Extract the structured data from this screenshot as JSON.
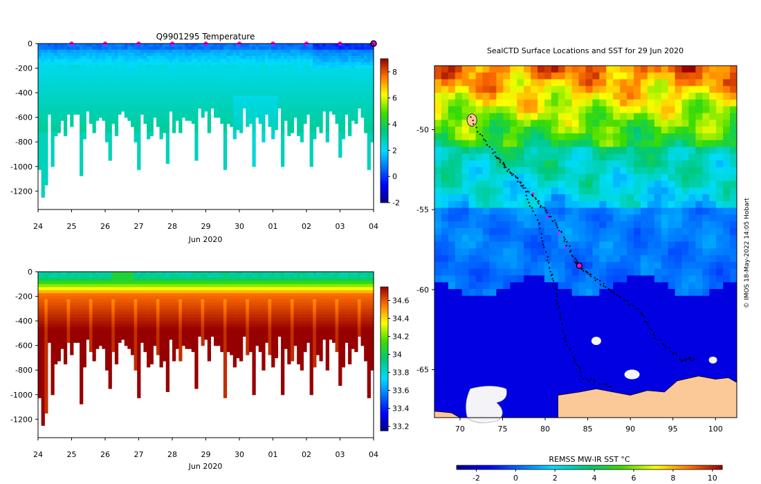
{
  "chart_data": [
    {
      "type": "heatmap",
      "title": "Q9901295  Temperature",
      "xlabel": "Jun 2020",
      "ylabel": "",
      "x_ticks": [
        "24",
        "25",
        "26",
        "27",
        "28",
        "29",
        "30",
        "01",
        "02",
        "03",
        "04"
      ],
      "y_ticks": [
        "0",
        "-200",
        "-400",
        "-600",
        "-800",
        "-1000",
        "-1200"
      ],
      "ylim": [
        -1350,
        0
      ],
      "colorbar_ticks": [
        "8",
        "6",
        "4",
        "2",
        "0",
        "-2"
      ],
      "colorbar_range": [
        -2,
        9
      ],
      "profile_markers_day": [
        25,
        26,
        27,
        28,
        29,
        30,
        31,
        32,
        33
      ],
      "last_profile_day": 34,
      "grid": false
    },
    {
      "type": "heatmap",
      "title": "",
      "xlabel": "Jun 2020",
      "ylabel": "",
      "x_ticks": [
        "24",
        "25",
        "26",
        "27",
        "28",
        "29",
        "30",
        "01",
        "02",
        "03",
        "04"
      ],
      "y_ticks": [
        "0",
        "-200",
        "-400",
        "-600",
        "-800",
        "-1000",
        "-1200"
      ],
      "ylim": [
        -1350,
        0
      ],
      "colorbar_ticks": [
        "34.6",
        "34.4",
        "34.2",
        "34",
        "33.8",
        "33.6",
        "33.4",
        "33.2"
      ],
      "colorbar_range": [
        33.15,
        34.75
      ],
      "grid": false
    },
    {
      "type": "map",
      "title": "SealCTD Surface Locations and SST for 29 Jun 2020",
      "x_ticks": [
        "70",
        "75",
        "80",
        "85",
        "90",
        "95",
        "100"
      ],
      "y_ticks": [
        "-50",
        "-55",
        "-60",
        "-65"
      ],
      "lon_range": [
        67,
        102.5
      ],
      "lat_range": [
        -68,
        -46
      ],
      "colorbar_label": "REMSS MW-IR SST °C",
      "colorbar_ticks": [
        "-2",
        "0",
        "2",
        "4",
        "6",
        "8",
        "10"
      ],
      "colorbar_range": [
        -3,
        10.5
      ],
      "current_location": {
        "lon": 84,
        "lat": -58.5
      },
      "credit": "© IMOS 18-May-2022 14:05 Hobart"
    }
  ],
  "colors": {
    "marker": "#ff00ff",
    "land": "#fbc898",
    "ice": "#f4f4f8",
    "axis": "#000000"
  }
}
